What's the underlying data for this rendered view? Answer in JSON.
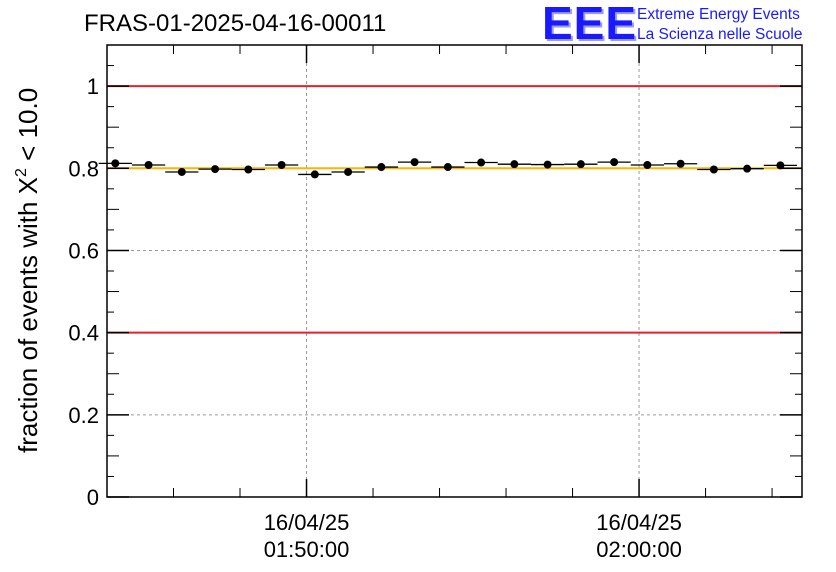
{
  "chart_data": {
    "type": "scatter",
    "title": "FRAS-01-2025-04-16-00011",
    "ylabel_prefix": "fraction of events with ",
    "ylabel_symbol": "X",
    "ylabel_exp": "2",
    "ylabel_suffix": " < 10.0",
    "xlabel": "",
    "ylim": [
      0,
      1.1
    ],
    "yticks": [
      {
        "value": 0,
        "label": "0"
      },
      {
        "value": 0.2,
        "label": "0.2"
      },
      {
        "value": 0.4,
        "label": "0.4"
      },
      {
        "value": 0.6,
        "label": "0.6"
      },
      {
        "value": 0.8,
        "label": "0.8"
      },
      {
        "value": 1,
        "label": "1"
      }
    ],
    "xlim_minutes": [
      -6.0,
      14.9
    ],
    "xticks": [
      {
        "minutes": 0,
        "date": "16/04/25",
        "time": "01:50:00"
      },
      {
        "minutes": 10,
        "date": "16/04/25",
        "time": "02:00:00"
      }
    ],
    "bin_width_minutes": 1.0,
    "x_minutes": [
      -5.75,
      -4.75,
      -3.75,
      -2.75,
      -1.75,
      -0.75,
      0.25,
      1.25,
      2.25,
      3.25,
      4.25,
      5.25,
      6.25,
      7.25,
      8.25,
      9.25,
      10.25,
      11.25,
      12.25,
      13.25,
      14.25
    ],
    "values": [
      0.812,
      0.808,
      0.791,
      0.798,
      0.797,
      0.808,
      0.785,
      0.791,
      0.803,
      0.815,
      0.803,
      0.814,
      0.81,
      0.809,
      0.81,
      0.815,
      0.808,
      0.811,
      0.797,
      0.799,
      0.807
    ],
    "reference_lines": [
      {
        "value": 1.0,
        "color": "#e8202a"
      },
      {
        "value": 0.4,
        "color": "#e8202a"
      },
      {
        "value": 0.8,
        "color": "#ffb400"
      }
    ],
    "grid": true
  },
  "logo": {
    "mark": "EEE",
    "line1": "Extreme Energy Events",
    "line2": "La Scienza nelle Scuole",
    "color": "#1a1aff"
  }
}
